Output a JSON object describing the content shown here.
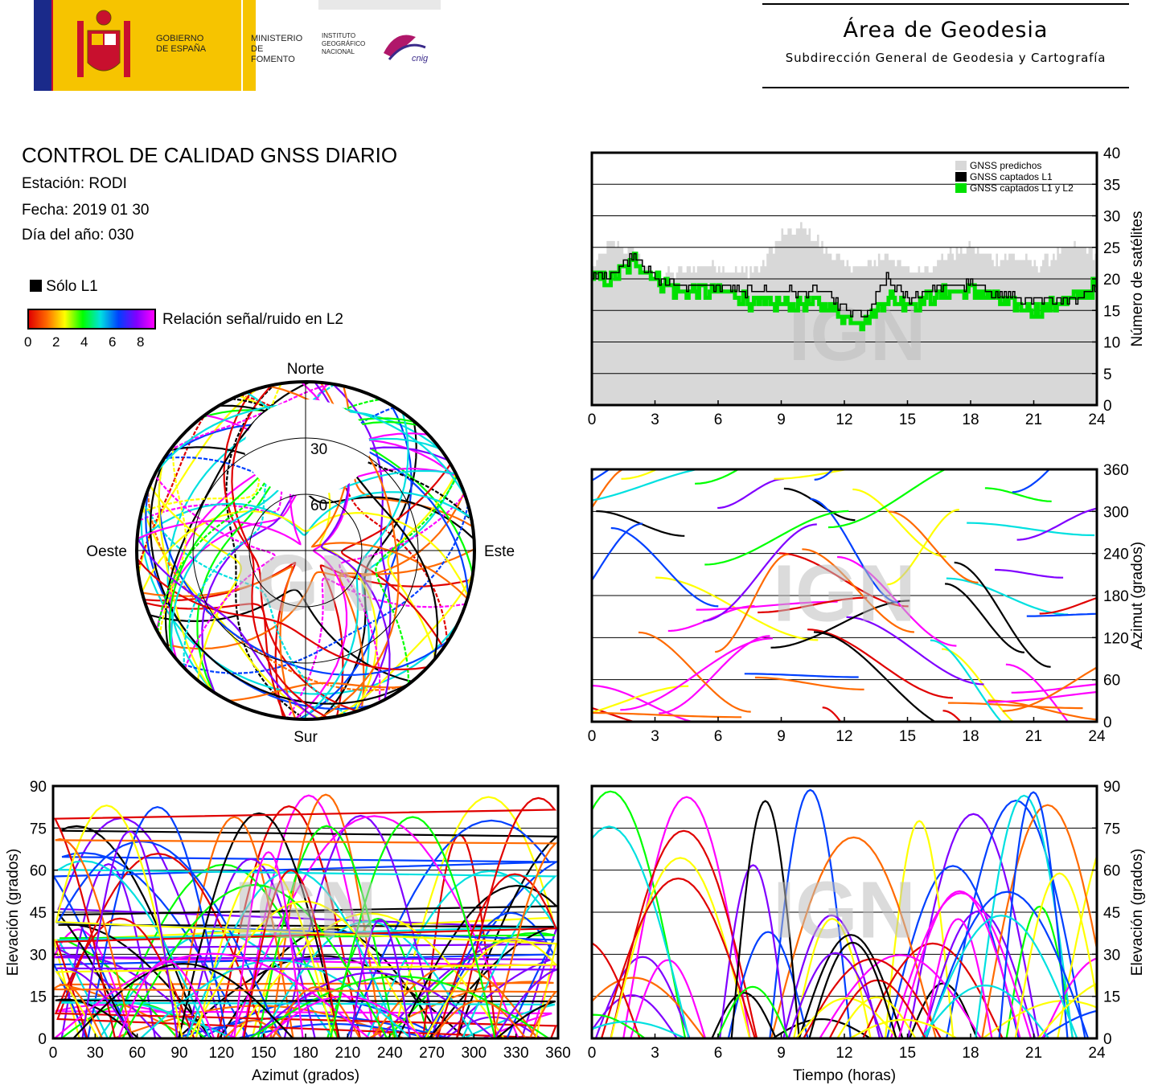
{
  "header": {
    "gov_line1": "GOBIERNO",
    "gov_line2": "DE ESPAÑA",
    "min_line1": "MINISTERIO",
    "min_line2": "DE FOMENTO",
    "ign_line1": "INSTITUTO",
    "ign_line2": "GEOGRÁFICO",
    "ign_line3": "NACIONAL",
    "cnig_logo": "cnig",
    "area_title": "Área de Geodesia",
    "area_subtitle": "Subdirección General de Geodesia y Cartografía"
  },
  "report": {
    "title": "CONTROL DE CALIDAD GNSS DIARIO",
    "station": "Estación: RODI",
    "date": "Fecha: 2019 01 30",
    "doy": "Día del año: 030"
  },
  "legend": {
    "only_l1": "Sólo L1",
    "snr_label": "Relación señal/ruido en L2",
    "snr_ticks": [
      "0",
      "2",
      "4",
      "6",
      "8"
    ]
  },
  "watermark": "IGN",
  "colors": {
    "snr_gradient": [
      "#e00000",
      "#ff6a00",
      "#ffff00",
      "#00ff00",
      "#00e0e0",
      "#0040ff",
      "#8000ff",
      "#ff00ff"
    ],
    "predicted": "#d8d8d8",
    "l1": "#000000",
    "l1l2": "#00e000"
  },
  "chart_data": [
    {
      "type": "area",
      "name": "satellite-count",
      "legend": [
        "GNSS predichos",
        "GNSS captados L1",
        "GNSS captados L1 y L2"
      ],
      "ylabel": "Número de satélites",
      "xlim": [
        0,
        24
      ],
      "ylim": [
        0,
        40
      ],
      "xticks": [
        "0",
        "3",
        "6",
        "9",
        "12",
        "15",
        "18",
        "21",
        "24"
      ],
      "yticks": [
        "0",
        "5",
        "10",
        "15",
        "20",
        "25",
        "30",
        "35",
        "40"
      ],
      "x": [
        0,
        1,
        2,
        3,
        4,
        5,
        6,
        7,
        8,
        9,
        10,
        11,
        12,
        13,
        14,
        15,
        16,
        17,
        18,
        19,
        20,
        21,
        22,
        23,
        24
      ],
      "series": [
        {
          "name": "GNSS predichos",
          "values": [
            22,
            26,
            24,
            20,
            21,
            22,
            22,
            21,
            22,
            27,
            28,
            25,
            22,
            22,
            24,
            21,
            22,
            24,
            25,
            23,
            24,
            22,
            24,
            25,
            24
          ]
        },
        {
          "name": "GNSS captados L1",
          "values": [
            20,
            21,
            24,
            20,
            19,
            19,
            19,
            18,
            18,
            18,
            18,
            18,
            15,
            14,
            20,
            17,
            18,
            19,
            19,
            18,
            17,
            16,
            17,
            17,
            19
          ]
        },
        {
          "name": "GNSS captados L1 y L2",
          "values": [
            20,
            20,
            23,
            20,
            18,
            18,
            18,
            17,
            16,
            16,
            16,
            16,
            14,
            13,
            17,
            16,
            17,
            18,
            18,
            17,
            16,
            15,
            16,
            17,
            19
          ]
        }
      ]
    },
    {
      "type": "scatter",
      "name": "skyplot",
      "labels": {
        "north": "Norte",
        "south": "Sur",
        "east": "Este",
        "west": "Oeste"
      },
      "rings": [
        "30",
        "60"
      ]
    },
    {
      "type": "line",
      "name": "azimuth-vs-time",
      "ylabel": "Azimut (grados)",
      "xlim": [
        0,
        24
      ],
      "ylim": [
        0,
        360
      ],
      "xticks": [
        "0",
        "3",
        "6",
        "9",
        "12",
        "15",
        "18",
        "21",
        "24"
      ],
      "yticks": [
        "0",
        "60",
        "120",
        "180",
        "240",
        "300",
        "360"
      ]
    },
    {
      "type": "line",
      "name": "elevation-vs-azimuth",
      "xlabel": "Azimut (grados)",
      "ylabel": "Elevación (grados)",
      "xlim": [
        0,
        360
      ],
      "ylim": [
        0,
        90
      ],
      "xticks": [
        "0",
        "30",
        "60",
        "90",
        "120",
        "150",
        "180",
        "210",
        "240",
        "270",
        "300",
        "330",
        "360"
      ],
      "yticks": [
        "0",
        "15",
        "30",
        "45",
        "60",
        "75",
        "90"
      ]
    },
    {
      "type": "line",
      "name": "elevation-vs-time",
      "xlabel": "Tiempo (horas)",
      "ylabel": "Elevación (grados)",
      "xlim": [
        0,
        24
      ],
      "ylim": [
        0,
        90
      ],
      "xticks": [
        "0",
        "3",
        "6",
        "9",
        "12",
        "15",
        "18",
        "21",
        "24"
      ],
      "yticks": [
        "0",
        "15",
        "30",
        "45",
        "60",
        "75",
        "90"
      ]
    }
  ]
}
